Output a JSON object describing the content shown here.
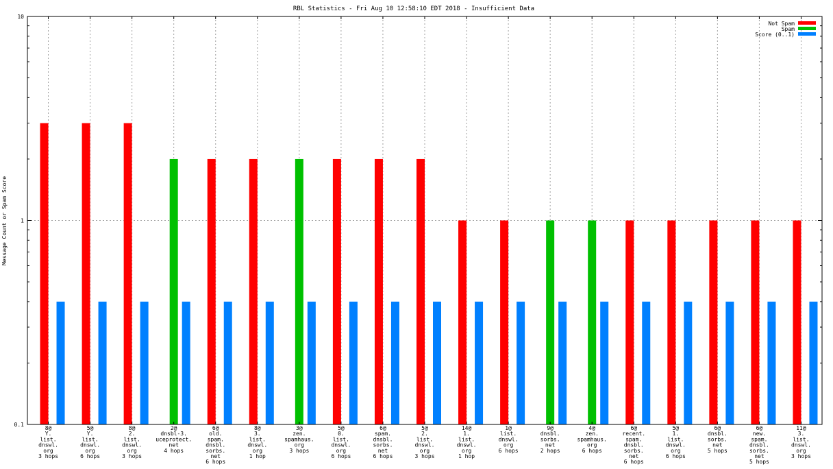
{
  "chart_data": {
    "type": "bar",
    "title": "RBL Statistics - Fri Aug 10 12:58:10 EDT 2018 - Insufficient Data",
    "ylabel": "Message Count or Spam Score",
    "xlabel": "",
    "yscale": "log",
    "ylim": [
      0.1,
      10
    ],
    "ytick_labels": [
      "10",
      "1",
      "0.1"
    ],
    "grid": true,
    "legend_position": "top-right",
    "categories": [
      [
        "8@",
        "Y.",
        "list.",
        "dnswl.",
        "org",
        "3 hops"
      ],
      [
        "5@",
        "Y.",
        "list.",
        "dnswl.",
        "org",
        "6 hops"
      ],
      [
        "8@",
        "2.",
        "list.",
        "dnswl.",
        "org",
        "3 hops"
      ],
      [
        "2@",
        "dnsbl-3.",
        "uceprotect.",
        "net",
        "4 hops"
      ],
      [
        "6@",
        "old.",
        "spam.",
        "dnsbl.",
        "sorbs.",
        "net",
        "6 hops"
      ],
      [
        "8@",
        "3.",
        "list.",
        "dnswl.",
        "org",
        "1 hop"
      ],
      [
        "3@",
        "zen.",
        "spamhaus.",
        "org",
        "3 hops"
      ],
      [
        "5@",
        "0.",
        "list.",
        "dnswl.",
        "org",
        "6 hops"
      ],
      [
        "6@",
        "spam.",
        "dnsbl.",
        "sorbs.",
        "net",
        "6 hops"
      ],
      [
        "5@",
        "2.",
        "list.",
        "dnswl.",
        "org",
        "3 hops"
      ],
      [
        "14@",
        "1.",
        "list.",
        "dnswl.",
        "org",
        "1 hop"
      ],
      [
        "1@",
        "list.",
        "dnswl.",
        "org",
        "6 hops"
      ],
      [
        "9@",
        "dnsbl.",
        "sorbs.",
        "net",
        "2 hops"
      ],
      [
        "4@",
        "zen.",
        "spamhaus.",
        "org",
        "6 hops"
      ],
      [
        "6@",
        "recent.",
        "spam.",
        "dnsbl.",
        "sorbs.",
        "net",
        "6 hops"
      ],
      [
        "5@",
        "1.",
        "list.",
        "dnswl.",
        "org",
        "6 hops"
      ],
      [
        "6@",
        "dnsbl.",
        "sorbs.",
        "net",
        "5 hops"
      ],
      [
        "6@",
        "new.",
        "spam.",
        "dnsbl.",
        "sorbs.",
        "net",
        "5 hops"
      ],
      [
        "11@",
        "3.",
        "list.",
        "dnswl.",
        "org",
        "3 hops"
      ]
    ],
    "series": [
      {
        "name": "Not Spam",
        "color": "#ff0000",
        "values": [
          3,
          3,
          3,
          null,
          2,
          2,
          null,
          2,
          2,
          2,
          1,
          1,
          null,
          null,
          1,
          1,
          1,
          1,
          1
        ]
      },
      {
        "name": "Spam",
        "color": "#00c000",
        "values": [
          null,
          null,
          null,
          2,
          null,
          null,
          2,
          null,
          null,
          null,
          null,
          null,
          1,
          1,
          null,
          null,
          null,
          null,
          null
        ]
      },
      {
        "name": "Score (0..1)",
        "color": "#0080ff",
        "values": [
          0.4,
          0.4,
          0.4,
          0.4,
          0.4,
          0.4,
          0.4,
          0.4,
          0.4,
          0.4,
          0.4,
          0.4,
          0.4,
          0.4,
          0.4,
          0.4,
          0.4,
          0.4,
          0.4
        ]
      }
    ]
  }
}
